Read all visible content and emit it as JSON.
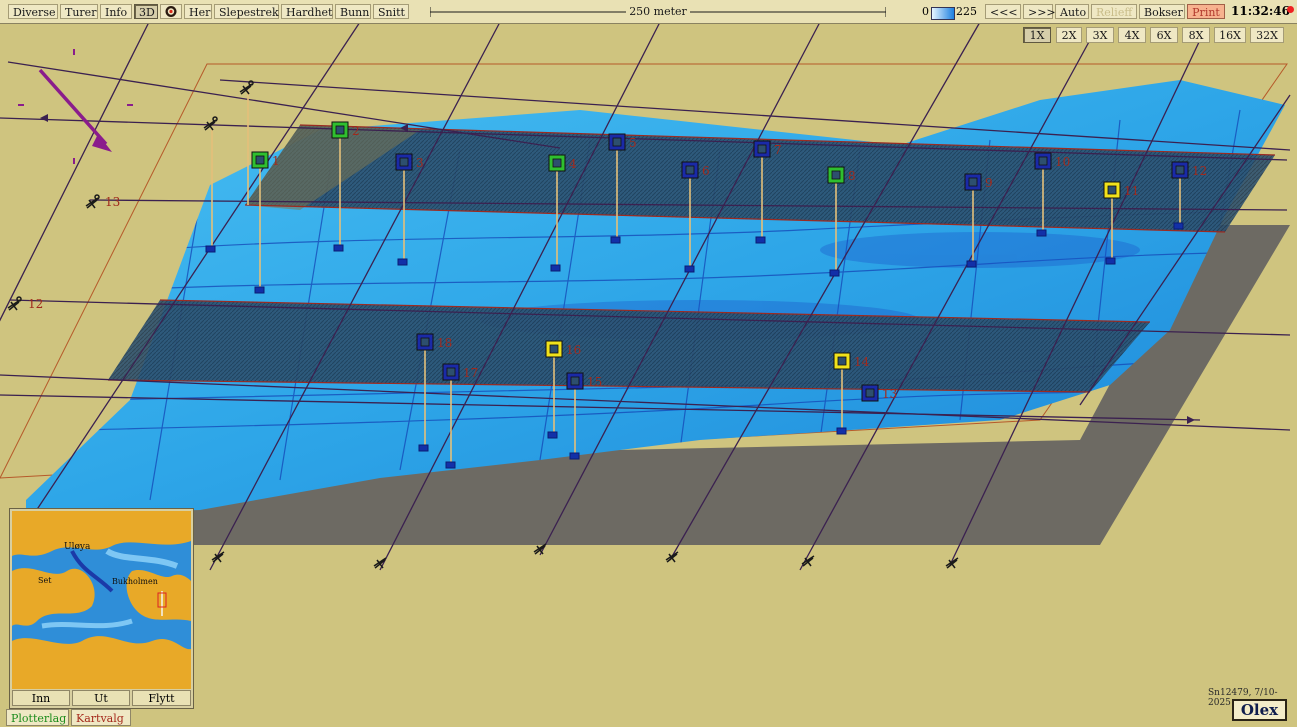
{
  "toolbar": {
    "menu": [
      {
        "id": "diverse",
        "label": "Diverse"
      },
      {
        "id": "turer",
        "label": "Turer"
      },
      {
        "id": "info",
        "label": "Info"
      },
      {
        "id": "3d",
        "label": "3D"
      },
      {
        "id": "her",
        "label": "Her"
      },
      {
        "id": "slepestrek",
        "label": "Slepestrek"
      },
      {
        "id": "hardhet",
        "label": "Hardhet"
      },
      {
        "id": "bunn",
        "label": "Bunn"
      },
      {
        "id": "snitt",
        "label": "Snitt"
      }
    ],
    "active_mode": "3D",
    "scale_label": "250 meter",
    "depth_min": "0",
    "depth_max": "225",
    "nav": {
      "back": "<<<",
      "forward": ">>>"
    },
    "auto_label": "Auto",
    "relieff_label": "Relieff",
    "bokser_label": "Bokser",
    "print_label": "Print",
    "clock": "11:32:46",
    "colors": {
      "print_bg": "#f7b28e",
      "print_text": "#b1382c",
      "clock_dot": "#e22222"
    }
  },
  "zoom": {
    "levels": [
      "1X",
      "2X",
      "3X",
      "4X",
      "6X",
      "8X",
      "16X",
      "32X"
    ],
    "selected": "1X"
  },
  "markers": [
    {
      "n": "1",
      "color": "green"
    },
    {
      "n": "2",
      "color": "green"
    },
    {
      "n": "3",
      "color": "blue"
    },
    {
      "n": "4",
      "color": "green"
    },
    {
      "n": "5",
      "color": "blue"
    },
    {
      "n": "6",
      "color": "blue"
    },
    {
      "n": "7",
      "color": "blue"
    },
    {
      "n": "8",
      "color": "green"
    },
    {
      "n": "9",
      "color": "blue"
    },
    {
      "n": "10",
      "color": "blue"
    },
    {
      "n": "11",
      "color": "yellow"
    },
    {
      "n": "12",
      "color": "blue"
    },
    {
      "n": "13",
      "color": "blue"
    },
    {
      "n": "14",
      "color": "yellow"
    },
    {
      "n": "15",
      "color": "blue"
    },
    {
      "n": "16",
      "color": "yellow"
    },
    {
      "n": "17",
      "color": "blue"
    },
    {
      "n": "18",
      "color": "blue"
    }
  ],
  "anchors": [
    {
      "label": "13"
    },
    {
      "label": "12"
    }
  ],
  "minimap": {
    "buttons": {
      "inn": "Inn",
      "ut": "Ut",
      "flytt": "Flytt"
    },
    "place_labels": [
      "Uløya",
      "Set",
      "Bukholmen"
    ]
  },
  "tabs": {
    "plotterlag": "Plotterlag",
    "kartvalg": "Kartvalg"
  },
  "serial": "Sn12479, 7/10-2025",
  "logo": "Olex",
  "colors": {
    "background": "#cfc47f",
    "seabed_light": "#3ab4ee",
    "seabed_dark": "#1f7fd6",
    "marker_green": "#2fbf2f",
    "marker_blue": "#1a2aa8",
    "marker_yellow": "#f1e21b",
    "marker_label": "#a02a1d",
    "track_line": "#3b2150"
  }
}
